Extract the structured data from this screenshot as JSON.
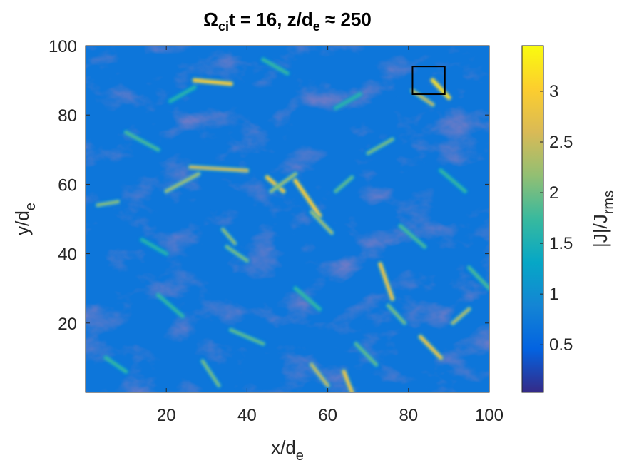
{
  "chart_data": {
    "type": "heatmap",
    "title": {
      "omega": "Ω",
      "omega_sub": "ci",
      "part1": "t = 16, z/d",
      "part1_sub": "e",
      "part2": " ≈ 250"
    },
    "xlabel": {
      "main": "x/d",
      "sub": "e"
    },
    "ylabel": {
      "main": "y/d",
      "sub": "e"
    },
    "colorbar_label": {
      "main": "|J|/J",
      "sub": "rms"
    },
    "xlim": [
      0,
      100
    ],
    "ylim": [
      0,
      100
    ],
    "clim": [
      0.03,
      3.45
    ],
    "x_ticks": [
      20,
      40,
      60,
      80,
      100
    ],
    "x_tick_labels": [
      "20",
      "40",
      "60",
      "80",
      "100"
    ],
    "y_ticks": [
      20,
      40,
      60,
      80,
      100
    ],
    "y_tick_labels": [
      "20",
      "40",
      "60",
      "80",
      "100"
    ],
    "colorbar_ticks": [
      0.5,
      1,
      1.5,
      2,
      2.5,
      3
    ],
    "colorbar_tick_labels": [
      "0.5",
      "1",
      "1.5",
      "2",
      "2.5",
      "3"
    ],
    "colormap": "parula",
    "colormap_stops": [
      "#352a87",
      "#0363e1",
      "#1485d4",
      "#06a7c6",
      "#38b99e",
      "#92bf73",
      "#d9ba56",
      "#fcce2e",
      "#f9fb0e"
    ],
    "background_value": 0.7,
    "highlight_box": {
      "x": [
        81,
        89
      ],
      "y": [
        86,
        94
      ]
    },
    "features": [
      {
        "x": [
          27,
          36
        ],
        "y": [
          90,
          89
        ],
        "value": 3.0
      },
      {
        "x": [
          20,
          28
        ],
        "y": [
          58,
          63
        ],
        "value": 2.2
      },
      {
        "x": [
          26,
          40
        ],
        "y": [
          65,
          64
        ],
        "value": 2.5
      },
      {
        "x": [
          45,
          49
        ],
        "y": [
          62,
          58
        ],
        "value": 2.9
      },
      {
        "x": [
          46,
          52
        ],
        "y": [
          58,
          63
        ],
        "value": 2.2
      },
      {
        "x": [
          52,
          58
        ],
        "y": [
          61,
          51
        ],
        "value": 3.0
      },
      {
        "x": [
          56,
          61
        ],
        "y": [
          52,
          46
        ],
        "value": 2.2
      },
      {
        "x": [
          73,
          76
        ],
        "y": [
          37,
          27
        ],
        "value": 2.8
      },
      {
        "x": [
          83,
          88
        ],
        "y": [
          16,
          10
        ],
        "value": 2.8
      },
      {
        "x": [
          86,
          90
        ],
        "y": [
          90,
          85
        ],
        "value": 3.2
      },
      {
        "x": [
          81,
          86
        ],
        "y": [
          87,
          83
        ],
        "value": 2.4
      },
      {
        "x": [
          64,
          66
        ],
        "y": [
          6,
          0
        ],
        "value": 2.8
      },
      {
        "x": [
          56,
          60
        ],
        "y": [
          8,
          2
        ],
        "value": 2.4
      },
      {
        "x": [
          29,
          33
        ],
        "y": [
          9,
          2
        ],
        "value": 2.0
      },
      {
        "x": [
          3,
          8
        ],
        "y": [
          54,
          55
        ],
        "value": 2.1
      },
      {
        "x": [
          62,
          66
        ],
        "y": [
          58,
          62
        ],
        "value": 1.9
      },
      {
        "x": [
          35,
          40
        ],
        "y": [
          42,
          38
        ],
        "value": 2.0
      },
      {
        "x": [
          34,
          37
        ],
        "y": [
          47,
          43
        ],
        "value": 2.1
      },
      {
        "x": [
          91,
          95
        ],
        "y": [
          20,
          24
        ],
        "value": 2.3
      },
      {
        "x": [
          36,
          44
        ],
        "y": [
          18,
          14
        ],
        "value": 1.9
      },
      {
        "x": [
          70,
          76
        ],
        "y": [
          69,
          73
        ],
        "value": 2.0
      },
      {
        "x": [
          10,
          18
        ],
        "y": [
          75,
          70
        ],
        "value": 1.8
      },
      {
        "x": [
          18,
          24
        ],
        "y": [
          28,
          22
        ],
        "value": 1.7
      },
      {
        "x": [
          95,
          100
        ],
        "y": [
          36,
          30
        ],
        "value": 1.8
      },
      {
        "x": [
          44,
          50
        ],
        "y": [
          96,
          92
        ],
        "value": 1.7
      },
      {
        "x": [
          62,
          68
        ],
        "y": [
          82,
          86
        ],
        "value": 1.6
      },
      {
        "x": [
          5,
          10
        ],
        "y": [
          10,
          6
        ],
        "value": 1.7
      },
      {
        "x": [
          78,
          84
        ],
        "y": [
          48,
          42
        ],
        "value": 1.8
      },
      {
        "x": [
          52,
          58
        ],
        "y": [
          30,
          24
        ],
        "value": 1.7
      },
      {
        "x": [
          14,
          20
        ],
        "y": [
          44,
          40
        ],
        "value": 1.6
      },
      {
        "x": [
          88,
          94
        ],
        "y": [
          64,
          58
        ],
        "value": 1.7
      },
      {
        "x": [
          67,
          72
        ],
        "y": [
          14,
          8
        ],
        "value": 1.9
      },
      {
        "x": [
          75,
          79
        ],
        "y": [
          25,
          20
        ],
        "value": 2.0
      },
      {
        "x": [
          21,
          27
        ],
        "y": [
          84,
          88
        ],
        "value": 1.6
      }
    ]
  }
}
